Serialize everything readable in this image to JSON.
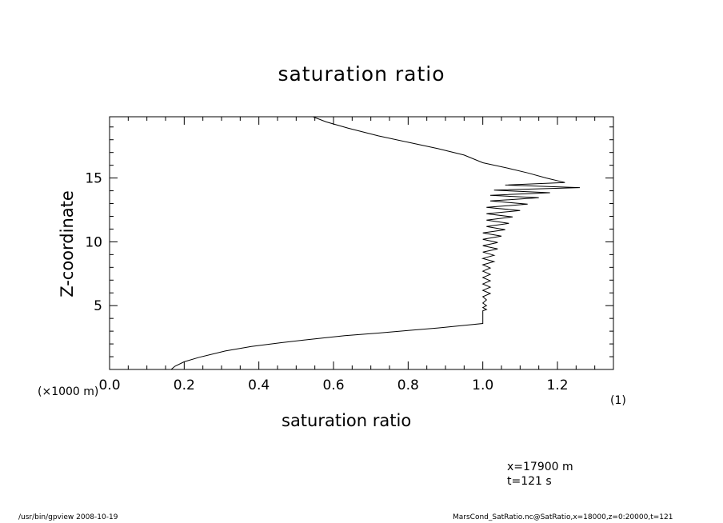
{
  "chart_data": {
    "type": "line",
    "title": "saturation ratio",
    "xlabel": "saturation ratio",
    "ylabel": "Z-coordinate",
    "x_unit": "(1)",
    "y_unit": "(×1000 m)",
    "xlim": [
      0,
      1.35
    ],
    "ylim": [
      0,
      19.8
    ],
    "x_ticks": [
      0.0,
      0.2,
      0.4,
      0.6,
      0.8,
      1.0,
      1.2
    ],
    "x_tick_labels": [
      "0.0",
      "0.2",
      "0.4",
      "0.6",
      "0.8",
      "1.0",
      "1.2"
    ],
    "y_ticks": [
      5,
      10,
      15
    ],
    "y_tick_labels": [
      "5",
      "10",
      "15"
    ],
    "grid": false,
    "series": [
      {
        "points": [
          [
            0.165,
            0.0
          ],
          [
            0.175,
            0.25
          ],
          [
            0.2,
            0.6
          ],
          [
            0.24,
            0.95
          ],
          [
            0.31,
            1.45
          ],
          [
            0.38,
            1.8
          ],
          [
            0.46,
            2.1
          ],
          [
            0.55,
            2.4
          ],
          [
            0.63,
            2.65
          ],
          [
            0.72,
            2.85
          ],
          [
            0.8,
            3.05
          ],
          [
            0.88,
            3.25
          ],
          [
            0.95,
            3.45
          ],
          [
            1.0,
            3.6
          ],
          [
            1.0,
            3.7
          ],
          [
            1.0,
            4.6
          ],
          [
            1.01,
            4.7
          ],
          [
            1.0,
            4.85
          ],
          [
            1.01,
            5.0
          ],
          [
            1.0,
            5.2
          ],
          [
            1.01,
            5.45
          ],
          [
            1.0,
            5.7
          ],
          [
            1.02,
            5.95
          ],
          [
            1.0,
            6.2
          ],
          [
            1.02,
            6.45
          ],
          [
            1.0,
            6.7
          ],
          [
            1.02,
            6.95
          ],
          [
            1.0,
            7.2
          ],
          [
            1.02,
            7.45
          ],
          [
            1.0,
            7.7
          ],
          [
            1.02,
            7.95
          ],
          [
            1.0,
            8.2
          ],
          [
            1.03,
            8.45
          ],
          [
            1.0,
            8.7
          ],
          [
            1.03,
            8.95
          ],
          [
            1.0,
            9.2
          ],
          [
            1.04,
            9.45
          ],
          [
            1.0,
            9.7
          ],
          [
            1.04,
            9.95
          ],
          [
            1.0,
            10.2
          ],
          [
            1.05,
            10.45
          ],
          [
            1.0,
            10.7
          ],
          [
            1.06,
            10.95
          ],
          [
            1.01,
            11.2
          ],
          [
            1.07,
            11.45
          ],
          [
            1.01,
            11.7
          ],
          [
            1.08,
            11.95
          ],
          [
            1.01,
            12.2
          ],
          [
            1.1,
            12.45
          ],
          [
            1.01,
            12.7
          ],
          [
            1.12,
            12.95
          ],
          [
            1.02,
            13.2
          ],
          [
            1.15,
            13.45
          ],
          [
            1.02,
            13.65
          ],
          [
            1.18,
            13.85
          ],
          [
            1.03,
            14.05
          ],
          [
            1.26,
            14.25
          ],
          [
            1.06,
            14.45
          ],
          [
            1.22,
            14.65
          ],
          [
            1.17,
            15.0
          ],
          [
            1.12,
            15.4
          ],
          [
            1.07,
            15.75
          ],
          [
            1.0,
            16.2
          ],
          [
            0.95,
            16.8
          ],
          [
            0.88,
            17.3
          ],
          [
            0.8,
            17.8
          ],
          [
            0.72,
            18.3
          ],
          [
            0.64,
            18.9
          ],
          [
            0.58,
            19.4
          ],
          [
            0.545,
            19.8
          ]
        ]
      }
    ]
  },
  "info": {
    "x_position": "x=17900  m",
    "time": "t=121  s"
  },
  "footer": {
    "left": "/usr/bin/gpview   2008-10-19",
    "right": "MarsCond_SatRatio.nc@SatRatio,x=18000,z=0:20000,t=121"
  }
}
